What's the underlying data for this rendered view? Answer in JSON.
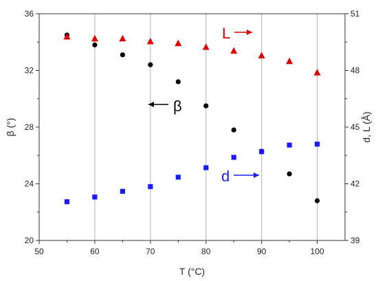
{
  "chart_data": {
    "type": "scatter",
    "xlabel": "T (°C)",
    "ylabel_left": "β (°)",
    "ylabel_right": "d, L (Å)",
    "xlim": [
      50,
      105
    ],
    "ylim_left": [
      20,
      36
    ],
    "ylim_right": [
      39,
      51
    ],
    "xticks": [
      50,
      60,
      70,
      80,
      90,
      100
    ],
    "yticks_left": [
      20,
      24,
      28,
      32,
      36
    ],
    "yticks_right": [
      39,
      42,
      45,
      48,
      51
    ],
    "grid": "vertical",
    "series": [
      {
        "key": "beta",
        "axis": "left",
        "marker": "circle",
        "color": "#000000",
        "x": [
          55,
          60,
          65,
          70,
          75,
          80,
          85,
          90,
          95,
          100
        ],
        "y": [
          34.5,
          33.8,
          33.1,
          32.4,
          31.2,
          29.5,
          27.8,
          26.3,
          24.7,
          22.8
        ]
      },
      {
        "key": "L",
        "axis": "right",
        "marker": "triangle",
        "color": "#e00000",
        "x": [
          55,
          60,
          65,
          70,
          75,
          80,
          85,
          90,
          95,
          100
        ],
        "y": [
          49.8,
          49.7,
          49.7,
          49.55,
          49.45,
          49.25,
          49.05,
          48.8,
          48.5,
          47.9
        ]
      },
      {
        "key": "d",
        "axis": "right",
        "marker": "square",
        "color": "#1a1aff",
        "x": [
          55,
          60,
          65,
          70,
          75,
          80,
          85,
          90,
          95,
          100
        ],
        "y": [
          41.05,
          41.3,
          41.6,
          41.85,
          42.35,
          42.85,
          43.4,
          43.7,
          44.05,
          44.1
        ]
      }
    ],
    "annotations": [
      {
        "text": "β",
        "color": "#000000",
        "arrow": "left"
      },
      {
        "text": "L",
        "color": "#e00000",
        "arrow": "right"
      },
      {
        "text": "d",
        "color": "#1a1aff",
        "arrow": "right"
      }
    ]
  }
}
